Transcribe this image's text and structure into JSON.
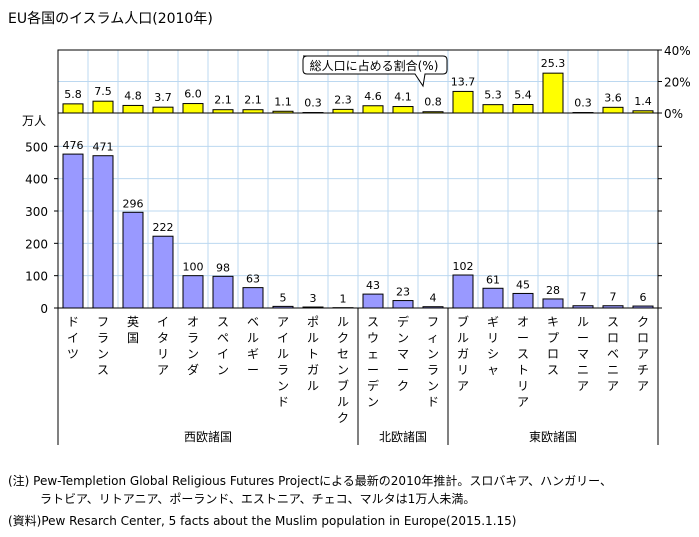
{
  "chart_data": [
    {
      "type": "bar",
      "title": "EU各国のイスラム人口(2010年)",
      "callout": "総人口に占める割合(%)",
      "ylabel": "",
      "ylim": [
        0,
        40
      ],
      "yticks": [
        "0%",
        "20%",
        "40%"
      ],
      "categories": [
        "ドイツ",
        "フランス",
        "英国",
        "イタリア",
        "オランダ",
        "スペイン",
        "ベルギー",
        "アイルランド",
        "ポルトガル",
        "ルクセンブルク",
        "スウェーデン",
        "デンマーク",
        "フィンランド",
        "ブルガリア",
        "ギリシャ",
        "オーストリア",
        "キプロス",
        "ルーマニア",
        "スロベニア",
        "クロアチア"
      ],
      "values": [
        5.8,
        7.5,
        4.8,
        3.7,
        6.0,
        2.1,
        2.1,
        1.1,
        0.3,
        2.3,
        4.6,
        4.1,
        0.8,
        13.7,
        5.3,
        5.4,
        25.3,
        0.3,
        3.6,
        1.4
      ],
      "labels": [
        "5.8",
        "7.5",
        "4.8",
        "3.7",
        "6.0",
        "2.1",
        "2.1",
        "1.1",
        "0.3",
        "2.3",
        "4.6",
        "4.1",
        "0.8",
        "13.7",
        "5.3",
        "5.4",
        "25.3",
        "0.3",
        "3.6",
        "1.4"
      ],
      "color": "#ffff00"
    },
    {
      "type": "bar",
      "ylabel": "万人",
      "ylim": [
        0,
        600
      ],
      "yticks": [
        "0",
        "100",
        "200",
        "300",
        "400",
        "500"
      ],
      "values": [
        476,
        471,
        296,
        222,
        100,
        98,
        63,
        5,
        3,
        1,
        43,
        23,
        4,
        102,
        61,
        45,
        28,
        7,
        7,
        6
      ],
      "color": "#9999ff",
      "groups": [
        {
          "name": "西欧諸国",
          "count": 10
        },
        {
          "name": "北欧諸国",
          "count": 3
        },
        {
          "name": "東欧諸国",
          "count": 7
        }
      ]
    }
  ],
  "notes": {
    "note1": "(注) Pew-Templetion Global Religious Futures Projectによる最新の2010年推計。スロバキア、ハンガリー、",
    "note2": "ラトビア、リトアニア、ポーランド、エストニア、チェコ、マルタは1万人未満。",
    "source": "(資料)Pew Resarch Center, 5 facts about the Muslim population in Europe(2015.1.15)"
  }
}
